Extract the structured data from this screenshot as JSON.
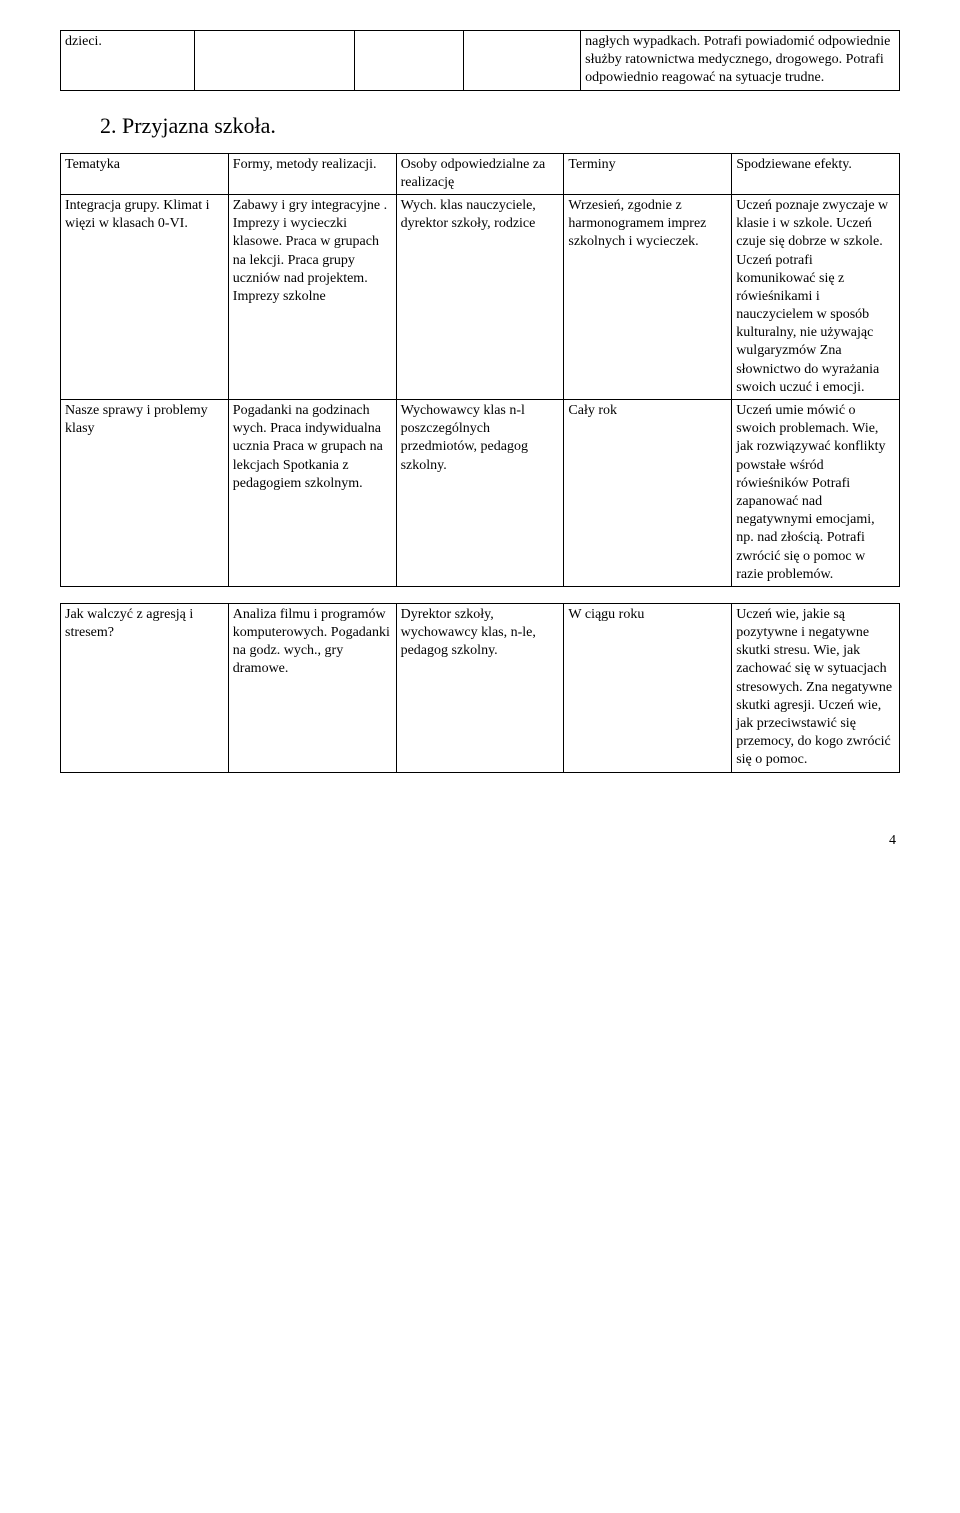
{
  "top_table": {
    "c1": "dzieci.",
    "c5": "nagłych wypadkach. Potrafi powiadomić odpowiednie służby ratownictwa medycznego, drogowego. Potrafi odpowiednio reagować na sytuacje trudne."
  },
  "section_title": "2. Przyjazna szkoła.",
  "main_table": {
    "head": [
      "Tematyka",
      "Formy, metody realizacji.",
      "Osoby odpowiedzialne za realizację",
      "Terminy",
      "Spodziewane efekty."
    ],
    "rows": [
      {
        "c1": "Integracja grupy. Klimat i więzi w klasach 0-VI.",
        "c2": "Zabawy i gry integracyjne . Imprezy i wycieczki klasowe. Praca w grupach na lekcji. Praca grupy uczniów nad projektem. Imprezy szkolne",
        "c3": "Wych. klas nauczyciele, dyrektor szkoły, rodzice",
        "c4": "Wrzesień, zgodnie z harmonogramem imprez szkolnych i wycieczek.",
        "c5": "Uczeń poznaje zwyczaje w klasie i w szkole. Uczeń czuje się dobrze w szkole. Uczeń potrafi komunikować się z rówieśnikami i nauczycielem w sposób kulturalny, nie używając wulgaryzmów Zna słownictwo do wyrażania swoich uczuć i emocji."
      },
      {
        "c1": "Nasze sprawy i problemy klasy",
        "c2": "Pogadanki na godzinach wych. Praca indywidualna ucznia Praca w grupach na lekcjach Spotkania z pedagogiem szkolnym.",
        "c3": "Wychowawcy klas n-l poszczególnych przedmiotów, pedagog szkolny.",
        "c4": "Cały rok",
        "c5": "Uczeń umie mówić o swoich problemach. Wie, jak rozwiązywać konflikty powstałe wśród rówieśników Potrafi zapanować nad negatywnymi emocjami, np. nad złością. Potrafi zwrócić się o pomoc w razie problemów."
      }
    ]
  },
  "bottom_table": {
    "row": {
      "c1": "Jak walczyć z agresją i stresem?",
      "c2": "Analiza filmu i programów komputerowych. Pogadanki na godz. wych., gry dramowe.",
      "c3": "Dyrektor szkoły, wychowawcy klas, n-le, pedagog szkolny.",
      "c4": "W ciągu roku",
      "c5": "Uczeń wie, jakie są pozytywne i negatywne skutki stresu. Wie, jak zachować się w sytuacjach stresowych. Zna negatywne skutki agresji. Uczeń wie, jak przeciwstawić się przemocy, do kogo zwrócić się o pomoc."
    }
  },
  "page_number": "4"
}
